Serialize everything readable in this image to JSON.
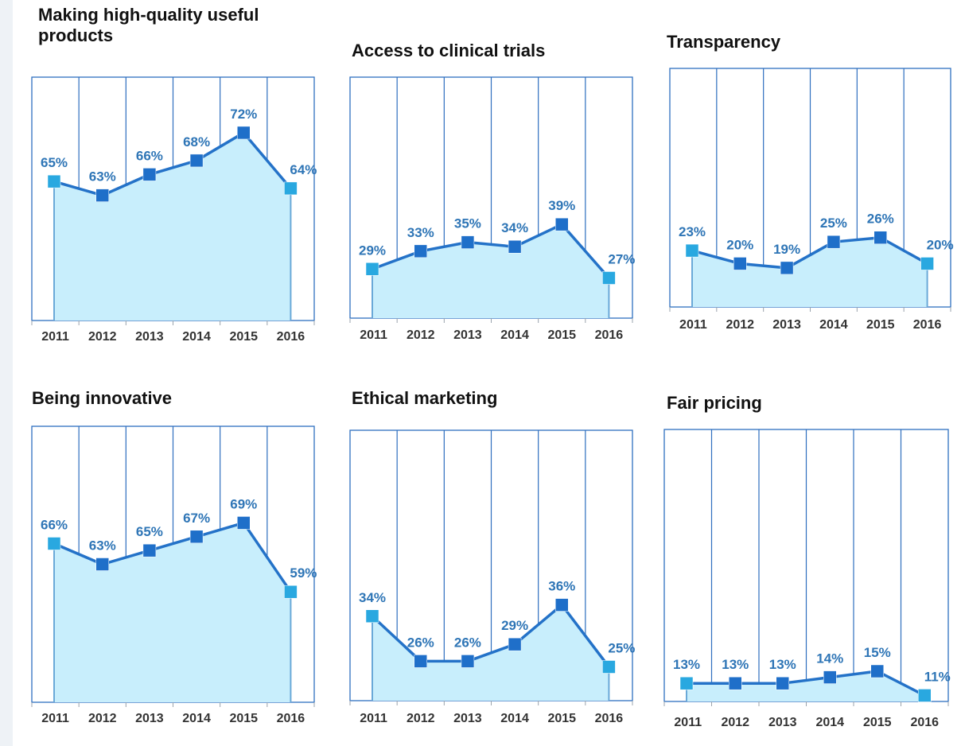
{
  "chart_data": [
    {
      "type": "area",
      "title": "Making high-quality useful products",
      "categories": [
        "2011",
        "2012",
        "2013",
        "2014",
        "2015",
        "2016"
      ],
      "values": [
        65,
        63,
        66,
        68,
        72,
        64
      ],
      "labels": [
        "65%",
        "63%",
        "66%",
        "68%",
        "72%",
        "64%"
      ],
      "ylim": [
        45,
        80
      ]
    },
    {
      "type": "area",
      "title": "Access to clinical trials",
      "categories": [
        "2011",
        "2012",
        "2013",
        "2014",
        "2015",
        "2016"
      ],
      "values": [
        29,
        33,
        35,
        34,
        39,
        27
      ],
      "labels": [
        "29%",
        "33%",
        "35%",
        "34%",
        "39%",
        "27%"
      ],
      "ylim": [
        18,
        72
      ]
    },
    {
      "type": "area",
      "title": "Transparency",
      "categories": [
        "2011",
        "2012",
        "2013",
        "2014",
        "2015",
        "2016"
      ],
      "values": [
        23,
        20,
        19,
        25,
        26,
        20
      ],
      "labels": [
        "23%",
        "20%",
        "19%",
        "25%",
        "26%",
        "20%"
      ],
      "ylim": [
        10,
        65
      ]
    },
    {
      "type": "area",
      "title": "Being innovative",
      "categories": [
        "2011",
        "2012",
        "2013",
        "2014",
        "2015",
        "2016"
      ],
      "values": [
        66,
        63,
        65,
        67,
        69,
        59
      ],
      "labels": [
        "66%",
        "63%",
        "65%",
        "67%",
        "69%",
        "59%"
      ],
      "ylim": [
        43,
        83
      ]
    },
    {
      "type": "area",
      "title": "Ethical marketing",
      "categories": [
        "2011",
        "2012",
        "2013",
        "2014",
        "2015",
        "2016"
      ],
      "values": [
        34,
        26,
        26,
        29,
        36,
        25
      ],
      "labels": [
        "34%",
        "26%",
        "26%",
        "29%",
        "36%",
        "25%"
      ],
      "ylim": [
        19,
        67
      ]
    },
    {
      "type": "area",
      "title": "Fair pricing",
      "categories": [
        "2011",
        "2012",
        "2013",
        "2014",
        "2015",
        "2016"
      ],
      "values": [
        13,
        13,
        13,
        14,
        15,
        11
      ],
      "labels": [
        "13%",
        "13%",
        "13%",
        "14%",
        "15%",
        "11%"
      ],
      "ylim": [
        10,
        55
      ]
    }
  ],
  "colors": {
    "line": "#2472c8",
    "fill": "#c8eefc",
    "grid": "#2e6fbf",
    "marker_edge": "#29a8e0",
    "marker_mid": "#1f6fc9",
    "label": "#2e75b6"
  }
}
